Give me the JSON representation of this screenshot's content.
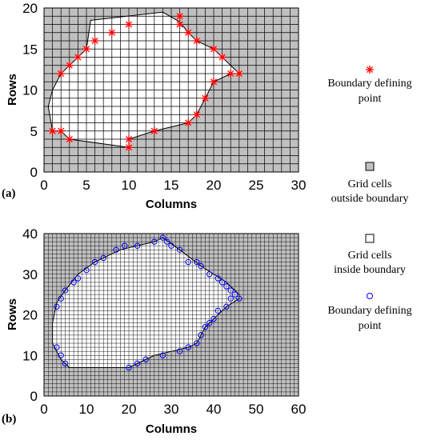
{
  "chart_data": [
    {
      "type": "scatter",
      "panel_label": "(a)",
      "xlabel": "Columns",
      "ylabel": "Rows",
      "xlim": [
        0,
        30
      ],
      "ylim": [
        0,
        20
      ],
      "xticks": [
        "0",
        "5",
        "10",
        "15",
        "20",
        "25",
        "30"
      ],
      "yticks": [
        "0",
        "5",
        "10",
        "15",
        "20"
      ],
      "grid": {
        "cols": 30,
        "rows": 20,
        "outside_color": "#c0c0c0",
        "inside_color": "#ffffff"
      },
      "boundary": [
        [
          5.5,
          18.5
        ],
        [
          14,
          19.5
        ],
        [
          16,
          18.3
        ],
        [
          17,
          17
        ],
        [
          18,
          16
        ],
        [
          20,
          15
        ],
        [
          21,
          14
        ],
        [
          23,
          12
        ],
        [
          22,
          12
        ],
        [
          20,
          11
        ],
        [
          19,
          9
        ],
        [
          18,
          7
        ],
        [
          17,
          6
        ],
        [
          13,
          5
        ],
        [
          10,
          4
        ],
        [
          10,
          3
        ],
        [
          3,
          4
        ],
        [
          2,
          5
        ],
        [
          1,
          5
        ],
        [
          0.5,
          8
        ],
        [
          1,
          10
        ],
        [
          2,
          12
        ],
        [
          3,
          13
        ],
        [
          4,
          14
        ],
        [
          5,
          15
        ]
      ],
      "points": [
        [
          1,
          5
        ],
        [
          2,
          5
        ],
        [
          3,
          4
        ],
        [
          10,
          4
        ],
        [
          10,
          3
        ],
        [
          13,
          5
        ],
        [
          17,
          6
        ],
        [
          18,
          7
        ],
        [
          19,
          9
        ],
        [
          20,
          11
        ],
        [
          22,
          12
        ],
        [
          23,
          12
        ],
        [
          21,
          14
        ],
        [
          20,
          15
        ],
        [
          18,
          16
        ],
        [
          17,
          17
        ],
        [
          16,
          18
        ],
        [
          16,
          19
        ],
        [
          10,
          18
        ],
        [
          8,
          17
        ],
        [
          6,
          16
        ],
        [
          5,
          15
        ],
        [
          4,
          14
        ],
        [
          3,
          13
        ],
        [
          2,
          12
        ]
      ],
      "marker": "asterisk",
      "marker_color": "#ff0000"
    },
    {
      "type": "scatter",
      "panel_label": "(b)",
      "xlabel": "Columns",
      "ylabel": "Rows",
      "xlim": [
        0,
        60
      ],
      "ylim": [
        0,
        40
      ],
      "xticks": [
        "0",
        "10",
        "20",
        "30",
        "40",
        "50",
        "60"
      ],
      "yticks": [
        "0",
        "10",
        "20",
        "30",
        "40"
      ],
      "grid": {
        "cols": 60,
        "rows": 40,
        "outside_color": "#c0c0c0",
        "inside_color": "#ffffff"
      },
      "boundary": [
        [
          8,
          30
        ],
        [
          12,
          33
        ],
        [
          18,
          36
        ],
        [
          26,
          38
        ],
        [
          28,
          39
        ],
        [
          32,
          36
        ],
        [
          37,
          32
        ],
        [
          40,
          30
        ],
        [
          43,
          28
        ],
        [
          46,
          25
        ],
        [
          46,
          24
        ],
        [
          43,
          22
        ],
        [
          40,
          19
        ],
        [
          38,
          17
        ],
        [
          36,
          13
        ],
        [
          34,
          12
        ],
        [
          30,
          11
        ],
        [
          26,
          10
        ],
        [
          20,
          7
        ],
        [
          6,
          7
        ],
        [
          4,
          9
        ],
        [
          2,
          13
        ],
        [
          2,
          18
        ],
        [
          3,
          23
        ],
        [
          5,
          26
        ]
      ],
      "points": [
        [
          3,
          22
        ],
        [
          4,
          24
        ],
        [
          5,
          26
        ],
        [
          7,
          28
        ],
        [
          8,
          29
        ],
        [
          10,
          31
        ],
        [
          12,
          33
        ],
        [
          14,
          34
        ],
        [
          17,
          36
        ],
        [
          19,
          37
        ],
        [
          22,
          37
        ],
        [
          26,
          38
        ],
        [
          28,
          39
        ],
        [
          29,
          38
        ],
        [
          30,
          37
        ],
        [
          32,
          36
        ],
        [
          34,
          33
        ],
        [
          36,
          33
        ],
        [
          37,
          32
        ],
        [
          39,
          30
        ],
        [
          41,
          29
        ],
        [
          42,
          28
        ],
        [
          43,
          27
        ],
        [
          44,
          26
        ],
        [
          45,
          25
        ],
        [
          46,
          24
        ],
        [
          44,
          24
        ],
        [
          43,
          22
        ],
        [
          41,
          21
        ],
        [
          40,
          19
        ],
        [
          39,
          18
        ],
        [
          38,
          17
        ],
        [
          37,
          15
        ],
        [
          36,
          13
        ],
        [
          34,
          12
        ],
        [
          32,
          11
        ],
        [
          28,
          10
        ],
        [
          24,
          9
        ],
        [
          22,
          8
        ],
        [
          20,
          7
        ],
        [
          5,
          8
        ],
        [
          4,
          10
        ],
        [
          3,
          12
        ]
      ],
      "marker": "circle",
      "marker_color": "#0000ff"
    }
  ],
  "legend": [
    {
      "symbol": "asterisk",
      "color": "#ff0000",
      "label_lines": [
        "Boundary defining",
        "point"
      ]
    },
    {
      "symbol": "square-filled",
      "color": "#c0c0c0",
      "label_lines": [
        "Grid cells",
        "outside boundary"
      ]
    },
    {
      "symbol": "square-empty",
      "color": "#ffffff",
      "label_lines": [
        "Grid cells",
        "inside boundary"
      ]
    },
    {
      "symbol": "circle",
      "color": "#0000ff",
      "label_lines": [
        "Boundary defining",
        "point"
      ]
    }
  ]
}
